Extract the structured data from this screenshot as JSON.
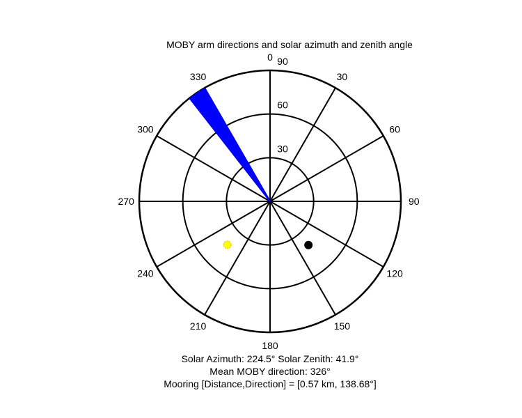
{
  "chart_data": {
    "type": "polar",
    "title": "MOBY arm directions and solar azimuth and zenith angle",
    "angular_axis": {
      "zero_direction": "top",
      "rotation": "clockwise",
      "tick_labels": [
        "0",
        "30",
        "60",
        "90",
        "120",
        "150",
        "180",
        "210",
        "240",
        "270",
        "300",
        "330"
      ],
      "tick_values": [
        0,
        30,
        60,
        90,
        120,
        150,
        180,
        210,
        240,
        270,
        300,
        330
      ]
    },
    "radial_axis": {
      "quantity": "zenith angle",
      "range": [
        0,
        90
      ],
      "tick_labels": [
        "30",
        "60",
        "90"
      ],
      "tick_values": [
        30,
        60,
        90
      ]
    },
    "grid": true,
    "arm_directions": {
      "color": "#0000ff",
      "radius": 90,
      "angles": [
        322,
        322.5,
        323,
        323.5,
        324,
        324.5,
        325,
        325.5,
        326,
        326.5,
        327,
        327.5,
        328,
        328.5,
        329,
        329.5,
        330
      ]
    },
    "sun": {
      "azimuth": 224.5,
      "zenith": 41.9,
      "color": "#ffff00"
    },
    "mooring": {
      "direction": 138.68,
      "zenith": 40,
      "color": "#000000"
    }
  },
  "captions": {
    "line1": "Solar Azimuth: 224.5°   Solar Zenith: 41.9°",
    "line2": "Mean MOBY direction: 326°",
    "line3": "Mooring [Distance,Direction] = [0.57 km, 138.68°]"
  }
}
